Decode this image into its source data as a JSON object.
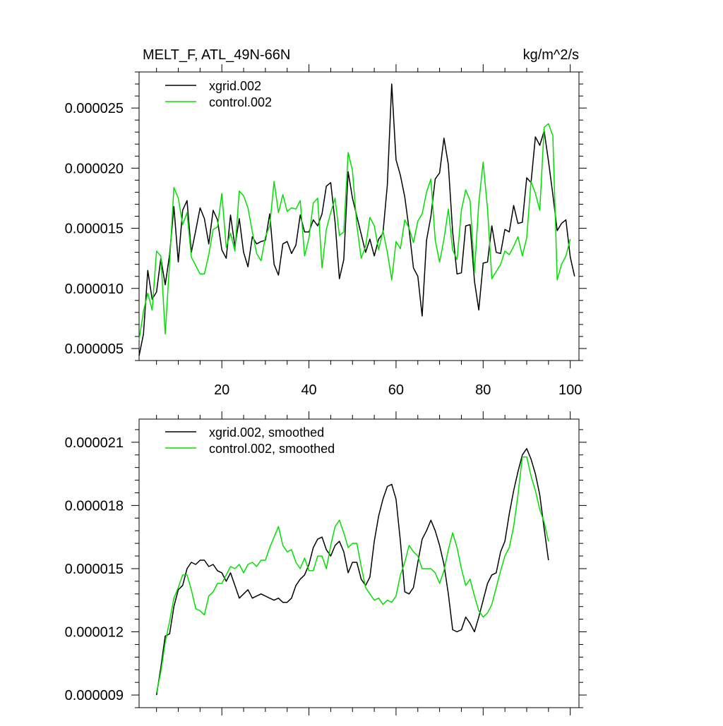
{
  "figure": {
    "title_left": "MELT_F, ATL_49N-66N",
    "title_right": "kg/m^2/s"
  },
  "colors": {
    "series_1": "#000000",
    "series_2": "#00e000",
    "axis": "#000000"
  },
  "chart_data": [
    {
      "type": "line",
      "xlim": [
        1,
        102
      ],
      "ylim": [
        4e-06,
        2.8e-05
      ],
      "x_ticks": [
        20,
        40,
        60,
        80,
        100
      ],
      "y_ticks": [
        5e-06,
        1e-05,
        1.5e-05,
        2e-05,
        2.5e-05
      ],
      "y_tick_labels": [
        "0.000005",
        "0.000010",
        "0.000015",
        "0.000020",
        "0.000025"
      ],
      "x_tick_labels": [
        "20",
        "40",
        "60",
        "80",
        "100"
      ],
      "legend_position": "top-left",
      "series": [
        {
          "name": "xgrid.002",
          "color": "#000000",
          "x_start": 1,
          "values": [
            4.4e-06,
            6.2e-06,
            1.15e-05,
            9.1e-06,
            9.7e-06,
            1.25e-05,
            1.03e-05,
            1.28e-05,
            1.68e-05,
            1.22e-05,
            1.65e-05,
            1.73e-05,
            1.3e-05,
            1.48e-05,
            1.67e-05,
            1.58e-05,
            1.37e-05,
            1.65e-05,
            1.57e-05,
            1.32e-05,
            1.25e-05,
            1.61e-05,
            1.35e-05,
            1.58e-05,
            1.3e-05,
            1.18e-05,
            1.43e-05,
            1.37e-05,
            1.39e-05,
            1.4e-05,
            1.62e-05,
            1.2e-05,
            1.11e-05,
            1.37e-05,
            1.39e-05,
            1.29e-05,
            1.36e-05,
            1.61e-05,
            1.47e-05,
            1.47e-05,
            1.57e-05,
            1.52e-05,
            1.62e-05,
            1.85e-05,
            1.88e-05,
            1.55e-05,
            1.08e-05,
            1.24e-05,
            1.97e-05,
            1.75e-05,
            1.6e-05,
            1.45e-05,
            1.3e-05,
            1.41e-05,
            1.27e-05,
            1.41e-05,
            1.46e-05,
            1.86e-05,
            2.7e-05,
            2.07e-05,
            1.94e-05,
            1.76e-05,
            1.49e-05,
            1.17e-05,
            1.1e-05,
            7.7e-06,
            1.4e-05,
            1.6e-05,
            1.91e-05,
            1.96e-05,
            2.25e-05,
            2.03e-05,
            1.47e-05,
            1.12e-05,
            1.13e-05,
            1.52e-05,
            1.53e-05,
            1.06e-05,
            8.2e-06,
            1.21e-05,
            1.22e-05,
            1.52e-05,
            1.3e-05,
            1.29e-05,
            1.49e-05,
            1.47e-05,
            1.69e-05,
            1.54e-05,
            1.55e-05,
            1.92e-05,
            1.88e-05,
            2.26e-05,
            2.19e-05,
            2.31e-05,
            2.06e-05,
            1.78e-05,
            1.48e-05,
            1.54e-05,
            1.57e-05,
            1.26e-05,
            1.1e-05
          ]
        },
        {
          "name": "control.002",
          "color": "#00e000",
          "x_start": 1,
          "values": [
            5.7e-06,
            8.1e-06,
            9.6e-06,
            8.2e-06,
            1.31e-05,
            1.27e-05,
            6.2e-06,
            1.21e-05,
            1.84e-05,
            1.75e-05,
            1.53e-05,
            1.63e-05,
            1.26e-05,
            1.19e-05,
            1.12e-05,
            1.12e-05,
            1.28e-05,
            1.49e-05,
            1.51e-05,
            1.79e-05,
            1.34e-05,
            1.46e-05,
            1.31e-05,
            1.81e-05,
            1.77e-05,
            1.67e-05,
            1.47e-05,
            1.29e-05,
            1.23e-05,
            1.43e-05,
            1.52e-05,
            1.89e-05,
            1.63e-05,
            1.78e-05,
            1.64e-05,
            1.67e-05,
            1.66e-05,
            1.73e-05,
            1.27e-05,
            1.42e-05,
            1.71e-05,
            1.75e-05,
            1.17e-05,
            1.49e-05,
            1.63e-05,
            1.75e-05,
            1.44e-05,
            1.47e-05,
            2.13e-05,
            1.98e-05,
            1.52e-05,
            1.25e-05,
            1.35e-05,
            1.59e-05,
            1.52e-05,
            1.32e-05,
            1.48e-05,
            1.3e-05,
            1.07e-05,
            1.39e-05,
            1.33e-05,
            1.57e-05,
            1.5e-05,
            1.38e-05,
            1.56e-05,
            1.62e-05,
            1.8e-05,
            1.91e-05,
            1.4e-05,
            1.22e-05,
            1.41e-05,
            1.66e-05,
            1.32e-05,
            1.24e-05,
            1.65e-05,
            1.82e-05,
            1.73e-05,
            1.13e-05,
            1.71e-05,
            2.05e-05,
            1.66e-05,
            1.08e-05,
            1.14e-05,
            1.2e-05,
            1.31e-05,
            1.28e-05,
            1.35e-05,
            1.43e-05,
            1.27e-05,
            1.42e-05,
            1.89e-05,
            1.79e-05,
            1.65e-05,
            2.34e-05,
            2.37e-05,
            2.27e-05,
            1.07e-05,
            1.2e-05,
            1.27e-05,
            1.41e-05
          ]
        }
      ]
    },
    {
      "type": "line",
      "xlim": [
        1,
        102
      ],
      "ylim": [
        8.4e-06,
        2.21e-05
      ],
      "x_ticks": [
        20,
        40,
        60,
        80,
        100
      ],
      "y_ticks": [
        9e-06,
        1.2e-05,
        1.5e-05,
        1.8e-05,
        2.1e-05
      ],
      "y_tick_labels": [
        "0.000009",
        "0.000012",
        "0.000015",
        "0.000018",
        "0.000021"
      ],
      "legend_position": "top-left",
      "series": [
        {
          "name": "xgrid.002, smoothed",
          "color": "#000000",
          "x_start": 5,
          "values": [
            9e-06,
            1.03e-05,
            1.18e-05,
            1.19e-05,
            1.32e-05,
            1.4e-05,
            1.42e-05,
            1.5e-05,
            1.53e-05,
            1.52e-05,
            1.54e-05,
            1.54e-05,
            1.51e-05,
            1.52e-05,
            1.49e-05,
            1.48e-05,
            1.44e-05,
            1.48e-05,
            1.42e-05,
            1.36e-05,
            1.38e-05,
            1.4e-05,
            1.36e-05,
            1.37e-05,
            1.38e-05,
            1.37e-05,
            1.36e-05,
            1.35e-05,
            1.36e-05,
            1.34e-05,
            1.34e-05,
            1.36e-05,
            1.42e-05,
            1.45e-05,
            1.47e-05,
            1.52e-05,
            1.6e-05,
            1.64e-05,
            1.65e-05,
            1.59e-05,
            1.56e-05,
            1.61e-05,
            1.63e-05,
            1.58e-05,
            1.48e-05,
            1.53e-05,
            1.53e-05,
            1.45e-05,
            1.42e-05,
            1.46e-05,
            1.63e-05,
            1.75e-05,
            1.83e-05,
            1.89e-05,
            1.9e-05,
            1.83e-05,
            1.63e-05,
            1.39e-05,
            1.38e-05,
            1.41e-05,
            1.53e-05,
            1.64e-05,
            1.68e-05,
            1.73e-05,
            1.68e-05,
            1.61e-05,
            1.52e-05,
            1.38e-05,
            1.21e-05,
            1.2e-05,
            1.21e-05,
            1.27e-05,
            1.24e-05,
            1.2e-05,
            1.27e-05,
            1.35e-05,
            1.43e-05,
            1.47e-05,
            1.48e-05,
            1.58e-05,
            1.63e-05,
            1.76e-05,
            1.87e-05,
            1.96e-05,
            2.04e-05,
            2.07e-05,
            2.02e-05,
            1.95e-05,
            1.85e-05,
            1.69e-05,
            1.54e-05
          ]
        },
        {
          "name": "control.002, smoothed",
          "color": "#00e000",
          "x_start": 5,
          "values": [
            9.1e-06,
            1.01e-05,
            1.15e-05,
            1.25e-05,
            1.36e-05,
            1.41e-05,
            1.47e-05,
            1.47e-05,
            1.4e-05,
            1.31e-05,
            1.3e-05,
            1.28e-05,
            1.37e-05,
            1.39e-05,
            1.43e-05,
            1.43e-05,
            1.47e-05,
            1.51e-05,
            1.5e-05,
            1.52e-05,
            1.48e-05,
            1.52e-05,
            1.53e-05,
            1.51e-05,
            1.54e-05,
            1.54e-05,
            1.6e-05,
            1.65e-05,
            1.7e-05,
            1.61e-05,
            1.58e-05,
            1.59e-05,
            1.53e-05,
            1.5e-05,
            1.55e-05,
            1.49e-05,
            1.49e-05,
            1.56e-05,
            1.56e-05,
            1.5e-05,
            1.61e-05,
            1.7e-05,
            1.73e-05,
            1.67e-05,
            1.6e-05,
            1.62e-05,
            1.62e-05,
            1.51e-05,
            1.41e-05,
            1.38e-05,
            1.35e-05,
            1.36e-05,
            1.33e-05,
            1.35e-05,
            1.34e-05,
            1.37e-05,
            1.47e-05,
            1.53e-05,
            1.61e-05,
            1.58e-05,
            1.56e-05,
            1.5e-05,
            1.5e-05,
            1.5e-05,
            1.48e-05,
            1.43e-05,
            1.49e-05,
            1.59e-05,
            1.67e-05,
            1.6e-05,
            1.5e-05,
            1.42e-05,
            1.45e-05,
            1.37e-05,
            1.3e-05,
            1.27e-05,
            1.29e-05,
            1.33e-05,
            1.41e-05,
            1.49e-05,
            1.56e-05,
            1.6e-05,
            1.7e-05,
            1.85e-05,
            2.03e-05,
            2.03e-05,
            1.94e-05,
            1.87e-05,
            1.78e-05,
            1.72e-05,
            1.63e-05
          ]
        }
      ]
    }
  ]
}
